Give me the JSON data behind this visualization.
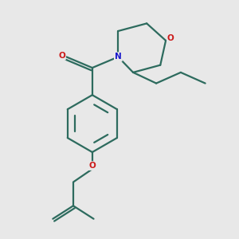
{
  "background_color": "#e8e8e8",
  "bond_color": "#2d6b5e",
  "N_color": "#1a1acc",
  "O_color": "#cc1a1a",
  "line_width": 1.6,
  "fig_size": [
    3.0,
    3.0
  ],
  "dpi": 100,
  "xlim": [
    0.5,
    8.5
  ],
  "ylim": [
    0.3,
    9.0
  ]
}
